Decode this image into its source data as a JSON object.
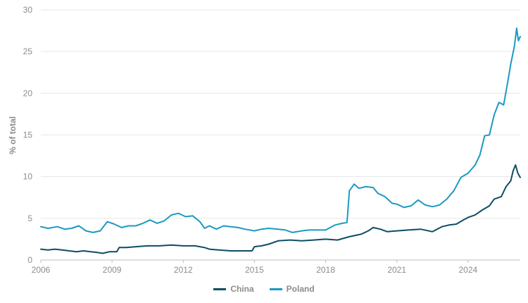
{
  "chart_data": {
    "type": "line",
    "ylabel": "% of total",
    "xlabel": "",
    "xlim": [
      2006.0,
      2026.2
    ],
    "ylim": [
      0,
      30
    ],
    "grid": true,
    "legend_position": "bottom-center",
    "x_ticks": [
      {
        "value": 2006,
        "label": "2006"
      },
      {
        "value": 2009,
        "label": "2009"
      },
      {
        "value": 2012,
        "label": "2012"
      },
      {
        "value": 2015,
        "label": "2015"
      },
      {
        "value": 2018,
        "label": "2018"
      },
      {
        "value": 2021,
        "label": "2021"
      },
      {
        "value": 2024,
        "label": "2024"
      }
    ],
    "y_ticks": [
      {
        "value": 0,
        "label": "0"
      },
      {
        "value": 5,
        "label": "5"
      },
      {
        "value": 10,
        "label": "10"
      },
      {
        "value": 15,
        "label": "15"
      },
      {
        "value": 20,
        "label": "20"
      },
      {
        "value": 25,
        "label": "25"
      },
      {
        "value": 30,
        "label": "30"
      }
    ],
    "series": [
      {
        "name": "China",
        "color": "#0e4d64",
        "points": [
          [
            2006.0,
            1.3
          ],
          [
            2006.3,
            1.2
          ],
          [
            2006.6,
            1.3
          ],
          [
            2006.9,
            1.2
          ],
          [
            2007.2,
            1.1
          ],
          [
            2007.5,
            1.0
          ],
          [
            2007.8,
            1.1
          ],
          [
            2008.1,
            1.0
          ],
          [
            2008.4,
            0.9
          ],
          [
            2008.6,
            0.8
          ],
          [
            2008.9,
            1.0
          ],
          [
            2009.2,
            1.0
          ],
          [
            2009.3,
            1.5
          ],
          [
            2009.6,
            1.5
          ],
          [
            2010.0,
            1.6
          ],
          [
            2010.5,
            1.7
          ],
          [
            2011.0,
            1.7
          ],
          [
            2011.5,
            1.8
          ],
          [
            2012.0,
            1.7
          ],
          [
            2012.5,
            1.7
          ],
          [
            2012.9,
            1.5
          ],
          [
            2013.1,
            1.3
          ],
          [
            2013.5,
            1.2
          ],
          [
            2014.0,
            1.1
          ],
          [
            2014.5,
            1.1
          ],
          [
            2014.9,
            1.1
          ],
          [
            2015.0,
            1.6
          ],
          [
            2015.3,
            1.7
          ],
          [
            2015.6,
            1.9
          ],
          [
            2016.0,
            2.3
          ],
          [
            2016.5,
            2.4
          ],
          [
            2017.0,
            2.3
          ],
          [
            2017.5,
            2.4
          ],
          [
            2018.0,
            2.5
          ],
          [
            2018.5,
            2.4
          ],
          [
            2019.0,
            2.8
          ],
          [
            2019.5,
            3.1
          ],
          [
            2019.8,
            3.5
          ],
          [
            2020.0,
            3.9
          ],
          [
            2020.3,
            3.7
          ],
          [
            2020.6,
            3.4
          ],
          [
            2021.0,
            3.5
          ],
          [
            2021.5,
            3.6
          ],
          [
            2022.0,
            3.7
          ],
          [
            2022.5,
            3.4
          ],
          [
            2022.9,
            4.0
          ],
          [
            2023.2,
            4.2
          ],
          [
            2023.5,
            4.3
          ],
          [
            2023.8,
            4.8
          ],
          [
            2024.0,
            5.1
          ],
          [
            2024.3,
            5.4
          ],
          [
            2024.6,
            6.0
          ],
          [
            2024.9,
            6.5
          ],
          [
            2025.1,
            7.3
          ],
          [
            2025.4,
            7.6
          ],
          [
            2025.6,
            8.8
          ],
          [
            2025.8,
            9.5
          ],
          [
            2025.9,
            10.7
          ],
          [
            2026.0,
            11.4
          ],
          [
            2026.1,
            10.4
          ],
          [
            2026.2,
            9.9
          ]
        ]
      },
      {
        "name": "Poland",
        "color": "#1b9ac2",
        "points": [
          [
            2006.0,
            4.0
          ],
          [
            2006.3,
            3.8
          ],
          [
            2006.7,
            4.0
          ],
          [
            2007.0,
            3.7
          ],
          [
            2007.3,
            3.8
          ],
          [
            2007.6,
            4.1
          ],
          [
            2007.9,
            3.5
          ],
          [
            2008.2,
            3.3
          ],
          [
            2008.5,
            3.5
          ],
          [
            2008.8,
            4.6
          ],
          [
            2009.1,
            4.3
          ],
          [
            2009.4,
            3.9
          ],
          [
            2009.7,
            4.1
          ],
          [
            2010.0,
            4.1
          ],
          [
            2010.3,
            4.4
          ],
          [
            2010.6,
            4.8
          ],
          [
            2010.9,
            4.4
          ],
          [
            2011.2,
            4.7
          ],
          [
            2011.5,
            5.4
          ],
          [
            2011.8,
            5.6
          ],
          [
            2012.1,
            5.2
          ],
          [
            2012.4,
            5.3
          ],
          [
            2012.7,
            4.6
          ],
          [
            2012.9,
            3.8
          ],
          [
            2013.1,
            4.1
          ],
          [
            2013.4,
            3.7
          ],
          [
            2013.7,
            4.1
          ],
          [
            2014.0,
            4.0
          ],
          [
            2014.3,
            3.9
          ],
          [
            2014.6,
            3.7
          ],
          [
            2015.0,
            3.5
          ],
          [
            2015.3,
            3.7
          ],
          [
            2015.6,
            3.8
          ],
          [
            2016.0,
            3.7
          ],
          [
            2016.3,
            3.6
          ],
          [
            2016.6,
            3.3
          ],
          [
            2017.0,
            3.5
          ],
          [
            2017.3,
            3.6
          ],
          [
            2017.6,
            3.6
          ],
          [
            2018.0,
            3.6
          ],
          [
            2018.4,
            4.2
          ],
          [
            2018.7,
            4.4
          ],
          [
            2018.9,
            4.5
          ],
          [
            2019.0,
            8.3
          ],
          [
            2019.2,
            9.1
          ],
          [
            2019.4,
            8.6
          ],
          [
            2019.7,
            8.8
          ],
          [
            2020.0,
            8.7
          ],
          [
            2020.2,
            8.0
          ],
          [
            2020.5,
            7.6
          ],
          [
            2020.8,
            6.8
          ],
          [
            2021.0,
            6.7
          ],
          [
            2021.3,
            6.3
          ],
          [
            2021.6,
            6.5
          ],
          [
            2021.9,
            7.2
          ],
          [
            2022.2,
            6.6
          ],
          [
            2022.5,
            6.4
          ],
          [
            2022.8,
            6.6
          ],
          [
            2023.1,
            7.3
          ],
          [
            2023.4,
            8.3
          ],
          [
            2023.7,
            9.9
          ],
          [
            2024.0,
            10.4
          ],
          [
            2024.3,
            11.4
          ],
          [
            2024.5,
            12.6
          ],
          [
            2024.7,
            14.9
          ],
          [
            2024.9,
            15.0
          ],
          [
            2025.1,
            17.4
          ],
          [
            2025.3,
            18.9
          ],
          [
            2025.5,
            18.6
          ],
          [
            2025.65,
            21.0
          ],
          [
            2025.8,
            23.5
          ],
          [
            2025.95,
            25.6
          ],
          [
            2026.05,
            27.8
          ],
          [
            2026.12,
            26.3
          ],
          [
            2026.2,
            26.8
          ]
        ]
      }
    ]
  }
}
